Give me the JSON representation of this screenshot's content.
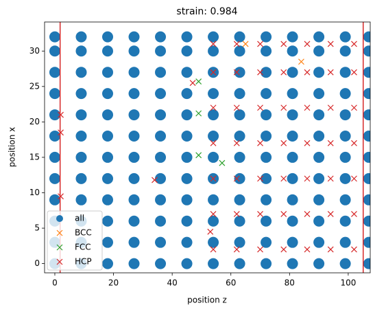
{
  "chart_data": {
    "type": "scatter",
    "title": "strain: 0.984",
    "x_label": "position z",
    "y_label": "position x",
    "xlim": [
      -3.5,
      107.5
    ],
    "ylim": [
      -1.3,
      34.1
    ],
    "xticks": [
      0,
      20,
      40,
      60,
      80,
      100
    ],
    "yticks": [
      0,
      5,
      10,
      15,
      20,
      25,
      30
    ],
    "vlines": [
      1.8,
      105.1
    ],
    "vline_color": "#d62728",
    "legend": "lower left",
    "series": [
      {
        "name": "all",
        "color": "#1f77b4",
        "marker": "o",
        "x": [
          0,
          9,
          18,
          27,
          36,
          45,
          54,
          63,
          72,
          81,
          90,
          99,
          107,
          0,
          9,
          18,
          27,
          36,
          45,
          54,
          63,
          72,
          81,
          90,
          99,
          107,
          0,
          9,
          18,
          27,
          36,
          45,
          54,
          63,
          72,
          81,
          90,
          99,
          107,
          0,
          9,
          18,
          27,
          36,
          45,
          54,
          63,
          72,
          81,
          90,
          99,
          107,
          0,
          9,
          18,
          27,
          36,
          45,
          54,
          63,
          72,
          81,
          90,
          99,
          107,
          0,
          9,
          18,
          27,
          36,
          45,
          54,
          63,
          72,
          81,
          90,
          99,
          107,
          0,
          9,
          18,
          27,
          36,
          45,
          54,
          63,
          72,
          81,
          90,
          99,
          107,
          0,
          9,
          18,
          27,
          36,
          45,
          54,
          63,
          72,
          81,
          90,
          99,
          107,
          0,
          9,
          18,
          27,
          36,
          45,
          54,
          63,
          72,
          81,
          90,
          99,
          107,
          0,
          9,
          18,
          27,
          36,
          45,
          54,
          63,
          72,
          81,
          90,
          99,
          107,
          0,
          9,
          18,
          27,
          36,
          45,
          54,
          63,
          72,
          81,
          90,
          99,
          107,
          0,
          9,
          18,
          27,
          36,
          45,
          54,
          63,
          72,
          81,
          90,
          99,
          107
        ],
        "y": [
          0,
          0,
          0,
          0,
          0,
          0,
          0,
          0,
          0,
          0,
          0,
          0,
          0,
          3,
          3,
          3,
          3,
          3,
          3,
          3,
          3,
          3,
          3,
          3,
          3,
          3,
          6,
          6,
          6,
          6,
          6,
          6,
          6,
          6,
          6,
          6,
          6,
          6,
          6,
          9,
          9,
          9,
          9,
          9,
          9,
          9,
          9,
          9,
          9,
          9,
          9,
          9,
          12,
          12,
          12,
          12,
          12,
          12,
          12,
          12,
          12,
          12,
          12,
          12,
          12,
          15,
          15,
          15,
          15,
          15,
          15,
          15,
          15,
          15,
          15,
          15,
          15,
          15,
          18,
          18,
          18,
          18,
          18,
          18,
          18,
          18,
          18,
          18,
          18,
          18,
          18,
          21,
          21,
          21,
          21,
          21,
          21,
          21,
          21,
          21,
          21,
          21,
          21,
          21,
          24,
          24,
          24,
          24,
          24,
          24,
          24,
          24,
          24,
          24,
          24,
          24,
          24,
          27,
          27,
          27,
          27,
          27,
          27,
          27,
          27,
          27,
          27,
          27,
          27,
          27,
          30,
          30,
          30,
          30,
          30,
          30,
          30,
          30,
          30,
          30,
          30,
          30,
          30,
          32,
          32,
          32,
          32,
          32,
          32,
          32,
          32,
          32,
          32,
          32,
          32,
          32
        ]
      },
      {
        "name": "BCC",
        "color": "#ff7f0e",
        "marker": "x",
        "x": [
          65,
          84
        ],
        "y": [
          31,
          28.5
        ]
      },
      {
        "name": "FCC",
        "color": "#2ca02c",
        "marker": "x",
        "x": [
          49,
          49,
          49,
          57
        ],
        "y": [
          25.7,
          21.2,
          15.3,
          14.2
        ]
      },
      {
        "name": "HCP",
        "color": "#d62728",
        "marker": "x",
        "x": [
          54,
          62,
          70,
          78,
          86,
          94,
          102,
          54,
          62,
          70,
          78,
          86,
          94,
          102,
          54,
          62,
          70,
          78,
          86,
          94,
          102,
          54,
          62,
          70,
          78,
          86,
          94,
          102,
          54,
          62,
          70,
          78,
          86,
          94,
          102,
          54,
          62,
          70,
          78,
          86,
          94,
          102,
          54,
          62,
          70,
          78,
          86,
          94,
          102,
          47,
          34,
          2,
          2,
          2,
          53
        ],
        "y": [
          2,
          2,
          2,
          2,
          2,
          2,
          2,
          7,
          7,
          7,
          7,
          7,
          7,
          7,
          12,
          12,
          12,
          12,
          12,
          12,
          12,
          17,
          17,
          17,
          17,
          17,
          17,
          17,
          22,
          22,
          22,
          22,
          22,
          22,
          22,
          27,
          27,
          27,
          27,
          27,
          27,
          27,
          31,
          31,
          31,
          31,
          31,
          31,
          31,
          25.5,
          11.8,
          21,
          18.5,
          9.5,
          4.5
        ]
      }
    ]
  }
}
